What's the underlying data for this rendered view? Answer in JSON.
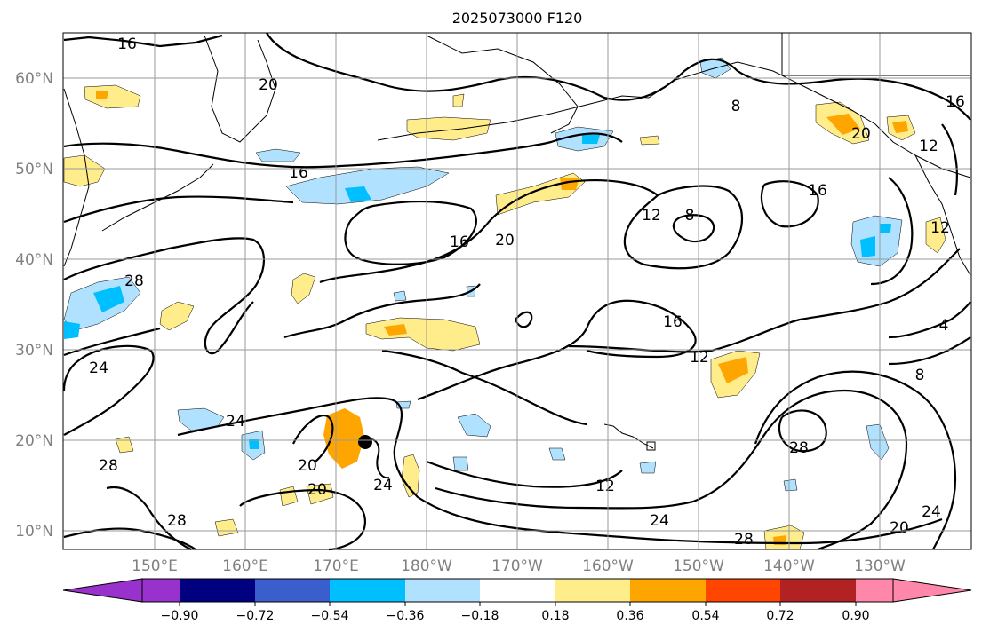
{
  "title": "2025073000 F120",
  "lat_labels": [
    "60°N",
    "50°N",
    "40°N",
    "30°N",
    "20°N",
    "10°N"
  ],
  "lon_labels": [
    "150°E",
    "160°E",
    "170°E",
    "180°W",
    "170°W",
    "160°W",
    "150°W",
    "140°W",
    "130°W"
  ],
  "colorbar": {
    "tick_labels": [
      "−0.90",
      "−0.72",
      "−0.54",
      "−0.36",
      "−0.18",
      "0.18",
      "0.36",
      "0.54",
      "0.72",
      "0.90"
    ],
    "colors": [
      "#9932cc",
      "#000080",
      "#3a5fcd",
      "#00bfff",
      "#b0e2ff",
      "#ffffff",
      "#ffec8b",
      "#ffa500",
      "#ff4500",
      "#b22222",
      "#ff88aa"
    ]
  },
  "contour_labels": [
    "16",
    "16",
    "16",
    "16",
    "16",
    "16",
    "12",
    "12",
    "12",
    "12",
    "12",
    "8",
    "8",
    "8",
    "4",
    "20",
    "20",
    "20",
    "20",
    "20",
    "24",
    "24",
    "24",
    "24",
    "24",
    "28",
    "28",
    "28",
    "28",
    "28",
    "20"
  ],
  "colors": {
    "gridline": "#9a9a9a",
    "axis_label": "#808080",
    "contour": "#000000"
  }
}
